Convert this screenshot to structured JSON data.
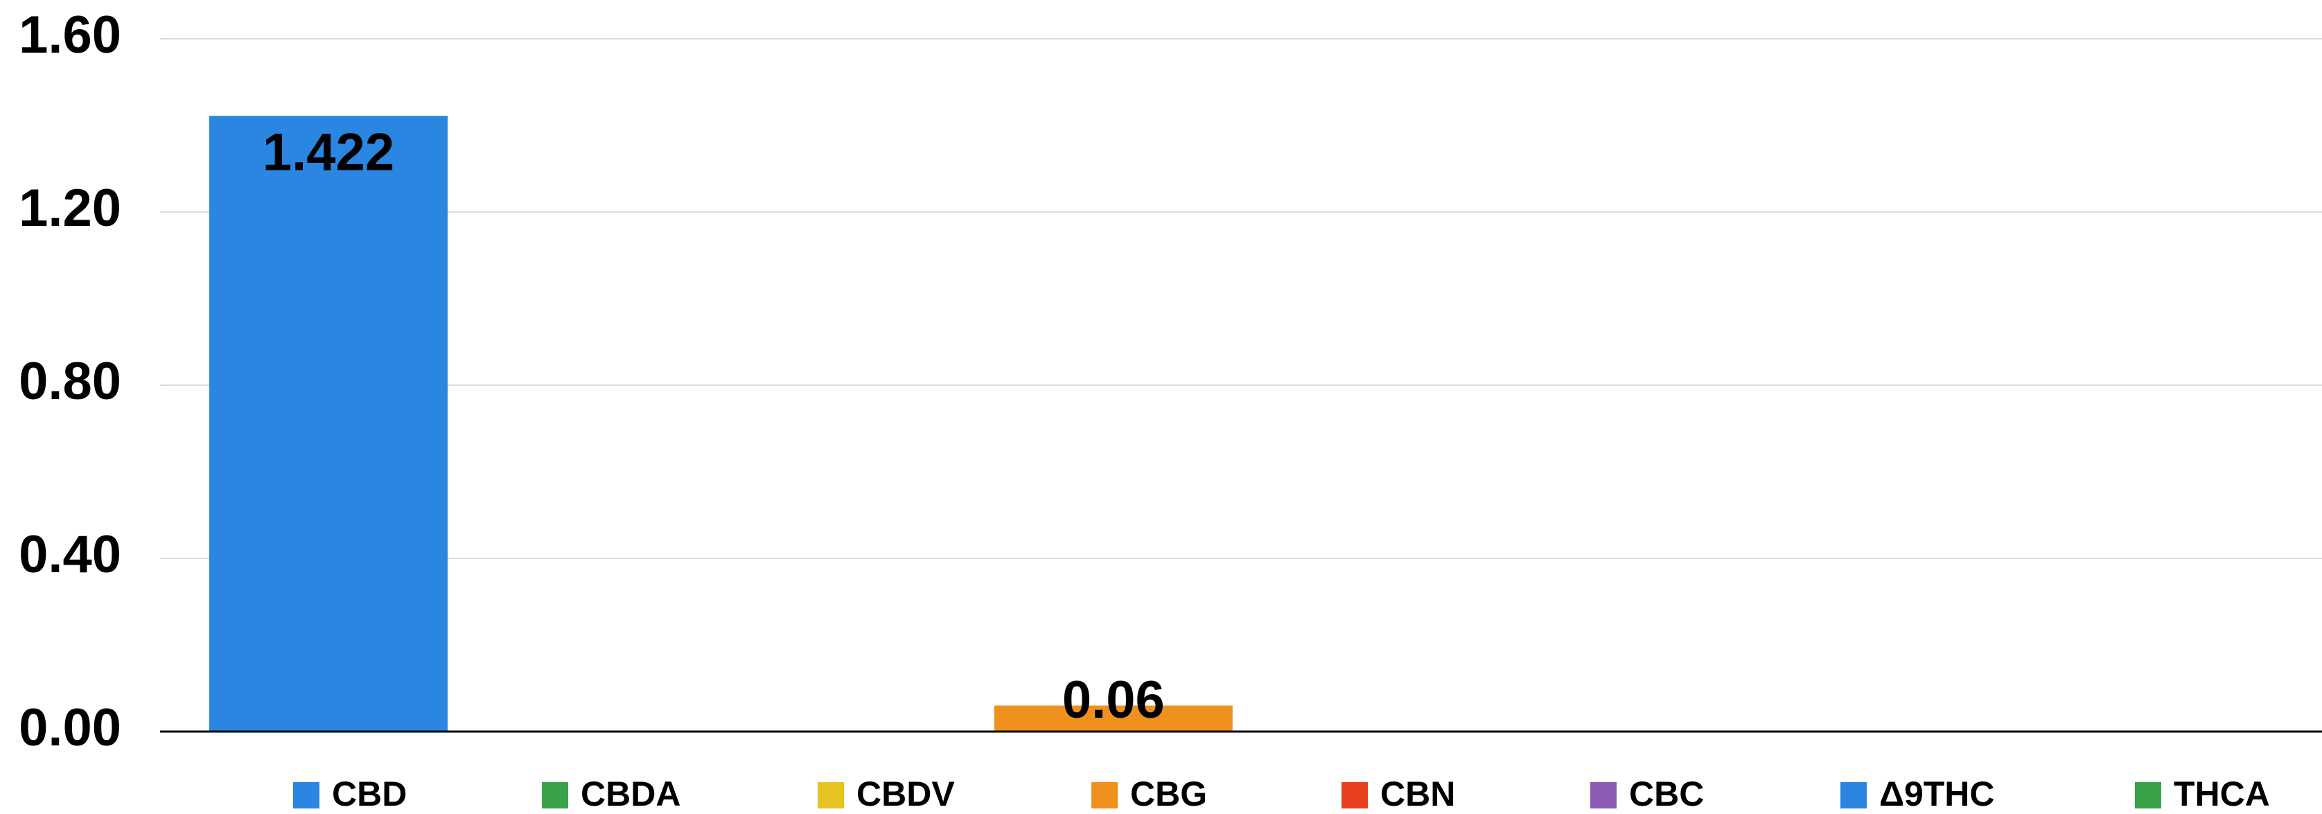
{
  "chart_data": {
    "type": "bar",
    "categories": [
      "CBD",
      "CBDA",
      "CBDV",
      "CBG",
      "CBN",
      "CBC",
      "Δ9THC",
      "THCA"
    ],
    "values": [
      1.422,
      0,
      0,
      0.06,
      0,
      0,
      0,
      0
    ],
    "colors": [
      "#2a86e0",
      "#3aa34a",
      "#e6c422",
      "#f0901e",
      "#e8401e",
      "#8e5bb5",
      "#2a86e0",
      "#3aa34a"
    ],
    "ylim": [
      0,
      1.6
    ],
    "yticks": [
      {
        "value": 0,
        "label": "0.00"
      },
      {
        "value": 0.4,
        "label": "0.40"
      },
      {
        "value": 0.8,
        "label": "0.80"
      },
      {
        "value": 1.2,
        "label": "1.20"
      },
      {
        "value": 1.6,
        "label": "1.60"
      }
    ],
    "grid": true
  }
}
